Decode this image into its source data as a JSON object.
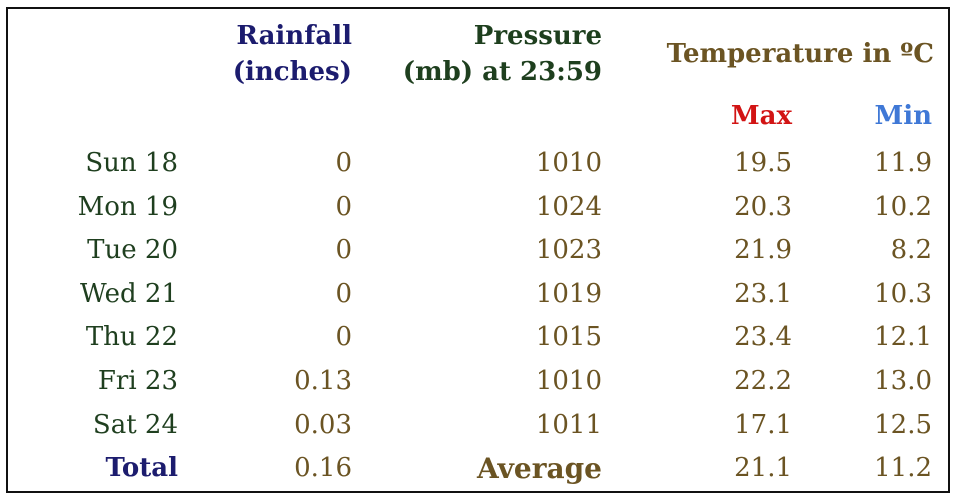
{
  "headers": {
    "rainfall_line1": "Rainfall",
    "rainfall_line2": "(inches)",
    "pressure_line1": "Pressure",
    "pressure_line2": "(mb) at 23:59",
    "temperature": "Temperature in ºC",
    "max": "Max",
    "min": "Min"
  },
  "rows": [
    {
      "day": "Sun 18",
      "rainfall": "0",
      "pressure": "1010",
      "max": "19.5",
      "min": "11.9"
    },
    {
      "day": "Mon 19",
      "rainfall": "0",
      "pressure": "1024",
      "max": "20.3",
      "min": "10.2"
    },
    {
      "day": "Tue 20",
      "rainfall": "0",
      "pressure": "1023",
      "max": "21.9",
      "min": "8.2"
    },
    {
      "day": "Wed 21",
      "rainfall": "0",
      "pressure": "1019",
      "max": "23.1",
      "min": "10.3"
    },
    {
      "day": "Thu 22",
      "rainfall": "0",
      "pressure": "1015",
      "max": "23.4",
      "min": "12.1"
    },
    {
      "day": "Fri 23",
      "rainfall": "0.13",
      "pressure": "1010",
      "max": "22.2",
      "min": "13.0"
    },
    {
      "day": "Sat 24",
      "rainfall": "0.03",
      "pressure": "1011",
      "max": "17.1",
      "min": "12.5"
    }
  ],
  "summary": {
    "total_label": "Total",
    "rainfall_total": "0.16",
    "average_label": "Average",
    "max_avg": "21.1",
    "min_avg": "11.2"
  },
  "colors": {
    "navy": "#1c1c6e",
    "green": "#1e3f1e",
    "brown": "#6b5423",
    "red": "#d21414",
    "blue": "#3f78d6"
  }
}
